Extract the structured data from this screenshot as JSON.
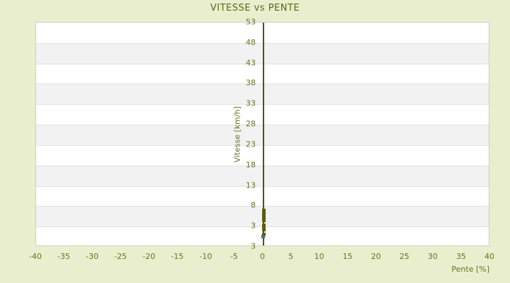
{
  "page": {
    "background_color": "#e9efce"
  },
  "chart": {
    "title": "VITESSE vs PENTE",
    "y_axis_title": "Vitesse [km/h]",
    "x_axis_title": "Pente [%]"
  },
  "colors": {
    "page_background": "#e9efce",
    "plot_background": "#ffffff",
    "band_alternate": "#f2f2f2",
    "gridline": "#e2e2e2",
    "plot_border": "#cccccc",
    "title_text": "#5c650e",
    "tick_text": "#6a7120",
    "axis_line": "#4d550f",
    "series_main": "#565e12",
    "series_secondary": "#497179"
  },
  "chart_data": {
    "type": "scatter",
    "title": "VITESSE vs PENTE",
    "xlabel": "Pente [%]",
    "ylabel": "Vitesse [km/h]",
    "xlim": [
      -40,
      40
    ],
    "x_ticks": [
      -40,
      -35,
      -30,
      -25,
      -20,
      -15,
      -10,
      -5,
      0,
      5,
      10,
      15,
      20,
      25,
      30,
      35,
      40
    ],
    "y_tick_labels": [
      "53",
      "48",
      "43",
      "38",
      "33",
      "28",
      "23",
      "18",
      "13",
      "8",
      "3",
      "3"
    ],
    "y_tick_values": [
      53,
      48,
      43,
      38,
      33,
      28,
      23,
      18,
      13,
      8,
      3
    ],
    "y_axis_bottom_extra_label": "3",
    "y_axis_drawn_at_x": 0,
    "grid": "horizontal alternating bands, no vertical gridlines",
    "legend": "none",
    "series": [
      {
        "name": "vitesse-points",
        "marker": "square",
        "color": "#565e12",
        "note": "dense overlapping point cluster at pente = 0, appears as vertical bar segments",
        "clusters": [
          {
            "x": 0,
            "y_from": 4.1,
            "y_to": 7.4
          },
          {
            "x": 0,
            "y_from": 1.9,
            "y_to": 3.8
          },
          {
            "x": 0,
            "y_from": 0.6,
            "y_to": 1.4
          }
        ]
      },
      {
        "name": "vitesse-point-secondary",
        "marker": "square",
        "color": "#497179",
        "points": [
          {
            "x": 0,
            "y": 0.6
          }
        ]
      }
    ]
  }
}
